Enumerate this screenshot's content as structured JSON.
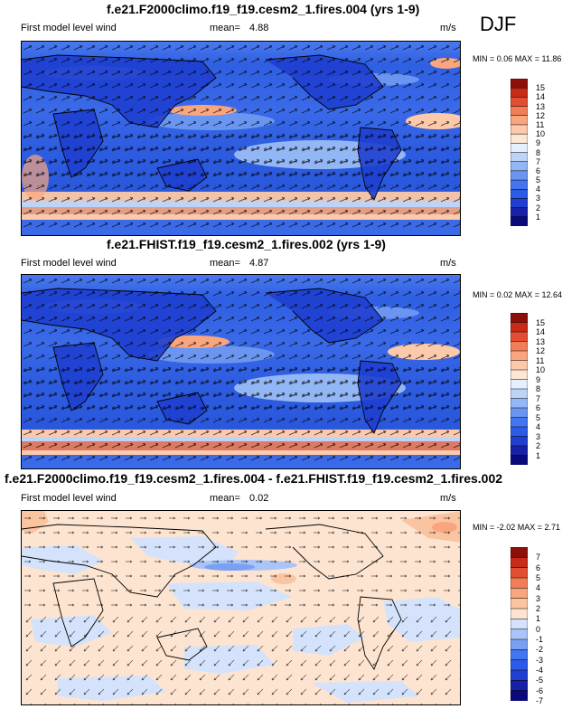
{
  "season": "DJF",
  "colors": {
    "positive_bands": [
      "#0a0a7a",
      "#1621a8",
      "#1f3fd0",
      "#2b5ce8",
      "#4275ef",
      "#6a96f2",
      "#93b6f5",
      "#bdd4f8",
      "#e5efff",
      "#fde6d2",
      "#fcc9aa",
      "#f9a67e",
      "#f17e56",
      "#e24e31",
      "#c82b18",
      "#8e0f0a"
    ],
    "diff_bands": [
      "#0a0a7a",
      "#1621a8",
      "#1f3fd0",
      "#2b5ce8",
      "#4275ef",
      "#7aa0f3",
      "#a9c4f6",
      "#d4e3fb",
      "#fde4d0",
      "#fbc4a0",
      "#f9a67e",
      "#f17e56",
      "#e24e31",
      "#c82b18",
      "#8e0f0a"
    ]
  },
  "panels": [
    {
      "title": "f.e21.F2000climo.f19_f19.cesm2_1.fires.004 (yrs 1-9)",
      "left_label": "First model level wind",
      "mean_label": "mean=",
      "mean_value": "4.88",
      "units": "m/s",
      "min_max": "MIN =  0.06 MAX = 11.86",
      "colorbar_ticks": [
        "15",
        "14",
        "13",
        "12",
        "11",
        "10",
        "9",
        "8",
        "7",
        "6",
        "5",
        "4",
        "3",
        "2",
        "1"
      ]
    },
    {
      "title": "f.e21.FHIST.f19_f19.cesm2_1.fires.002 (yrs 1-9)",
      "left_label": "First model level wind",
      "mean_label": "mean=",
      "mean_value": "4.87",
      "units": "m/s",
      "min_max": "MIN =  0.02 MAX = 12.64",
      "colorbar_ticks": [
        "15",
        "14",
        "13",
        "12",
        "11",
        "10",
        "9",
        "8",
        "7",
        "6",
        "5",
        "4",
        "3",
        "2",
        "1"
      ]
    },
    {
      "title": "f.e21.F2000climo.f19_f19.cesm2_1.fires.004 - f.e21.FHIST.f19_f19.cesm2_1.fires.002",
      "left_label": "First model level wind",
      "mean_label": "mean=",
      "mean_value": "0.02",
      "units": "m/s",
      "min_max": "MIN = -2.02 MAX =  2.71",
      "colorbar_ticks": [
        "7",
        "6",
        "5",
        "4",
        "3",
        "2",
        "1",
        "0",
        "-1",
        "-2",
        "-3",
        "-4",
        "-5",
        "-6",
        "-7"
      ]
    }
  ],
  "chart_data": [
    {
      "type": "heatmap",
      "title": "f.e21.F2000climo.f19_f19.cesm2_1.fires.004 (yrs 1-9)",
      "variable": "First model level wind",
      "units": "m/s",
      "mean": 4.88,
      "min": 0.06,
      "max": 11.86,
      "colorbar_levels": [
        1,
        2,
        3,
        4,
        5,
        6,
        7,
        8,
        9,
        10,
        11,
        12,
        13,
        14,
        15
      ]
    },
    {
      "type": "heatmap",
      "title": "f.e21.FHIST.f19_f19.cesm2_1.fires.002 (yrs 1-9)",
      "variable": "First model level wind",
      "units": "m/s",
      "mean": 4.87,
      "min": 0.02,
      "max": 12.64,
      "colorbar_levels": [
        1,
        2,
        3,
        4,
        5,
        6,
        7,
        8,
        9,
        10,
        11,
        12,
        13,
        14,
        15
      ]
    },
    {
      "type": "heatmap",
      "title": "f.e21.F2000climo.f19_f19.cesm2_1.fires.004 - f.e21.FHIST.f19_f19.cesm2_1.fires.002",
      "variable": "First model level wind",
      "units": "m/s",
      "mean": 0.02,
      "min": -2.02,
      "max": 2.71,
      "colorbar_levels": [
        -7,
        -6,
        -5,
        -4,
        -3,
        -2,
        -1,
        0,
        1,
        2,
        3,
        4,
        5,
        6,
        7
      ]
    }
  ]
}
